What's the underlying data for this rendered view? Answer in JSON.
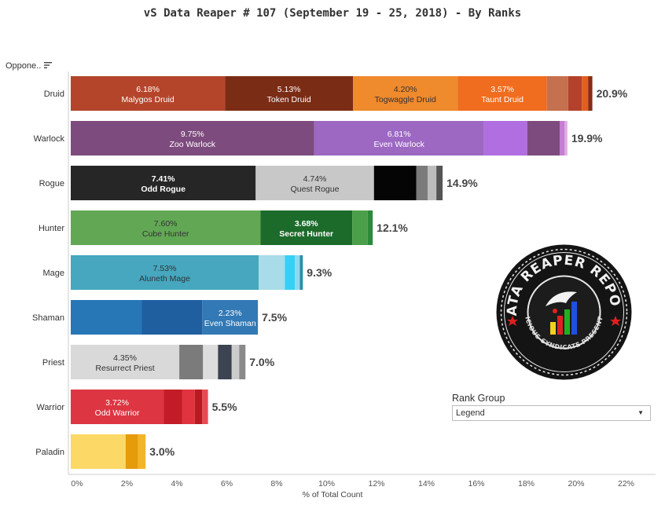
{
  "title": "vS Data Reaper #  107 (September 19 - 25, 2018) - By Ranks",
  "opponent_header": "Oppone..",
  "sort_icon": "sort-descending-icon",
  "rank_group": {
    "title": "Rank Group",
    "selected": "Legend",
    "caret": "▼"
  },
  "logo": {
    "text_top": "DATA REAPER REPORT",
    "text_bottom": "VICIOUS SYNDICATE PRESENTS"
  },
  "chart_data": {
    "type": "bar",
    "orientation": "horizontal",
    "stacked": true,
    "xlabel": "% of Total Count",
    "xlim": [
      0,
      22
    ],
    "x_ticks": [
      "0%",
      "2%",
      "4%",
      "6%",
      "8%",
      "10%",
      "12%",
      "14%",
      "16%",
      "18%",
      "20%",
      "22%"
    ],
    "categories": [
      {
        "name": "Druid",
        "total": 20.9,
        "total_label": "20.9%",
        "segments": [
          {
            "value": 6.18,
            "label": "6.18%",
            "name": "Malygos Druid",
            "color": "#b5452a",
            "bold": false,
            "dark_text": false
          },
          {
            "value": 5.13,
            "label": "5.13%",
            "name": "Token Druid",
            "color": "#7a2c15",
            "bold": false,
            "dark_text": false
          },
          {
            "value": 4.2,
            "label": "4.20%",
            "name": "Togwaggle Druid",
            "color": "#ef8a2d",
            "bold": false,
            "dark_text": true
          },
          {
            "value": 3.57,
            "label": "3.57%",
            "name": "Taunt Druid",
            "color": "#f06d1f",
            "bold": false,
            "dark_text": false
          },
          {
            "value": 0.85,
            "color": "#c5704e"
          },
          {
            "value": 0.55,
            "color": "#b3412b"
          },
          {
            "value": 0.25,
            "color": "#e25f1c"
          },
          {
            "value": 0.17,
            "color": "#8a2a12"
          }
        ]
      },
      {
        "name": "Warlock",
        "total": 19.9,
        "total_label": "19.9%",
        "segments": [
          {
            "value": 9.75,
            "label": "9.75%",
            "name": "Zoo Warlock",
            "color": "#7d4b7e",
            "bold": false,
            "dark_text": false
          },
          {
            "value": 6.81,
            "label": "6.81%",
            "name": "Even Warlock",
            "color": "#9c68c2",
            "bold": false,
            "dark_text": false
          },
          {
            "value": 1.73,
            "color": "#b06ee0"
          },
          {
            "value": 1.3,
            "color": "#7d4b7e"
          },
          {
            "value": 0.2,
            "color": "#c37fd1"
          },
          {
            "value": 0.11,
            "color": "#e1a9e6"
          }
        ]
      },
      {
        "name": "Rogue",
        "total": 14.9,
        "total_label": "14.9%",
        "segments": [
          {
            "value": 7.41,
            "label": "7.41%",
            "name": "Odd Rogue",
            "color": "#262626",
            "bold": true,
            "dark_text": false
          },
          {
            "value": 4.74,
            "label": "4.74%",
            "name": "Quest Rogue",
            "color": "#c8c8c8",
            "bold": false,
            "dark_text": true
          },
          {
            "value": 1.7,
            "color": "#050505"
          },
          {
            "value": 0.45,
            "color": "#7b7b7b"
          },
          {
            "value": 0.35,
            "color": "#bdbdbd"
          },
          {
            "value": 0.25,
            "color": "#555555"
          }
        ]
      },
      {
        "name": "Hunter",
        "total": 12.1,
        "total_label": "12.1%",
        "segments": [
          {
            "value": 7.6,
            "label": "7.60%",
            "name": "Cube Hunter",
            "color": "#62a854",
            "bold": false,
            "dark_text": true
          },
          {
            "value": 3.68,
            "label": "3.68%",
            "name": "Secret Hunter",
            "color": "#1c6b2b",
            "bold": true,
            "dark_text": false
          },
          {
            "value": 0.62,
            "color": "#4b9e4a"
          },
          {
            "value": 0.2,
            "color": "#2a8a3a"
          }
        ]
      },
      {
        "name": "Mage",
        "total": 9.3,
        "total_label": "9.3%",
        "segments": [
          {
            "value": 7.53,
            "label": "7.53%",
            "name": "Aluneth Mage",
            "color": "#46a7bf",
            "bold": false,
            "dark_text": true
          },
          {
            "value": 1.05,
            "color": "#a8dce8"
          },
          {
            "value": 0.4,
            "color": "#35d0f5"
          },
          {
            "value": 0.2,
            "color": "#8fd9ec"
          },
          {
            "value": 0.12,
            "color": "#2a8ea8"
          }
        ]
      },
      {
        "name": "Shaman",
        "total": 7.5,
        "total_label": "7.5%",
        "segments": [
          {
            "value": 2.85,
            "color": "#2776b6"
          },
          {
            "value": 2.42,
            "color": "#1f5fa0"
          },
          {
            "value": 2.23,
            "label": "2.23%",
            "name": "Even Shaman",
            "color": "#3279b5",
            "bold": false,
            "dark_text": false
          }
        ]
      },
      {
        "name": "Priest",
        "total": 7.0,
        "total_label": "7.0%",
        "segments": [
          {
            "value": 4.35,
            "label": "4.35%",
            "name": "Resurrect Priest",
            "color": "#d9d9d9",
            "bold": false,
            "dark_text": true
          },
          {
            "value": 0.95,
            "color": "#7b7b7b"
          },
          {
            "value": 0.6,
            "color": "#dddddd"
          },
          {
            "value": 0.55,
            "color": "#3c4452"
          },
          {
            "value": 0.3,
            "color": "#cccccc"
          },
          {
            "value": 0.25,
            "color": "#8a8a8a"
          }
        ]
      },
      {
        "name": "Warrior",
        "total": 5.5,
        "total_label": "5.5%",
        "segments": [
          {
            "value": 3.72,
            "label": "3.72%",
            "name": "Odd Warrior",
            "color": "#dd3542",
            "bold": false,
            "dark_text": false
          },
          {
            "value": 0.75,
            "color": "#c41c26"
          },
          {
            "value": 0.5,
            "color": "#e0323f"
          },
          {
            "value": 0.3,
            "color": "#b81a22"
          },
          {
            "value": 0.23,
            "color": "#e84a54"
          }
        ]
      },
      {
        "name": "Paladin",
        "total": 3.0,
        "total_label": "3.0%",
        "segments": [
          {
            "value": 2.2,
            "color": "#fcd966"
          },
          {
            "value": 0.5,
            "color": "#e59b0a"
          },
          {
            "value": 0.3,
            "color": "#f2b52a"
          }
        ]
      }
    ]
  }
}
